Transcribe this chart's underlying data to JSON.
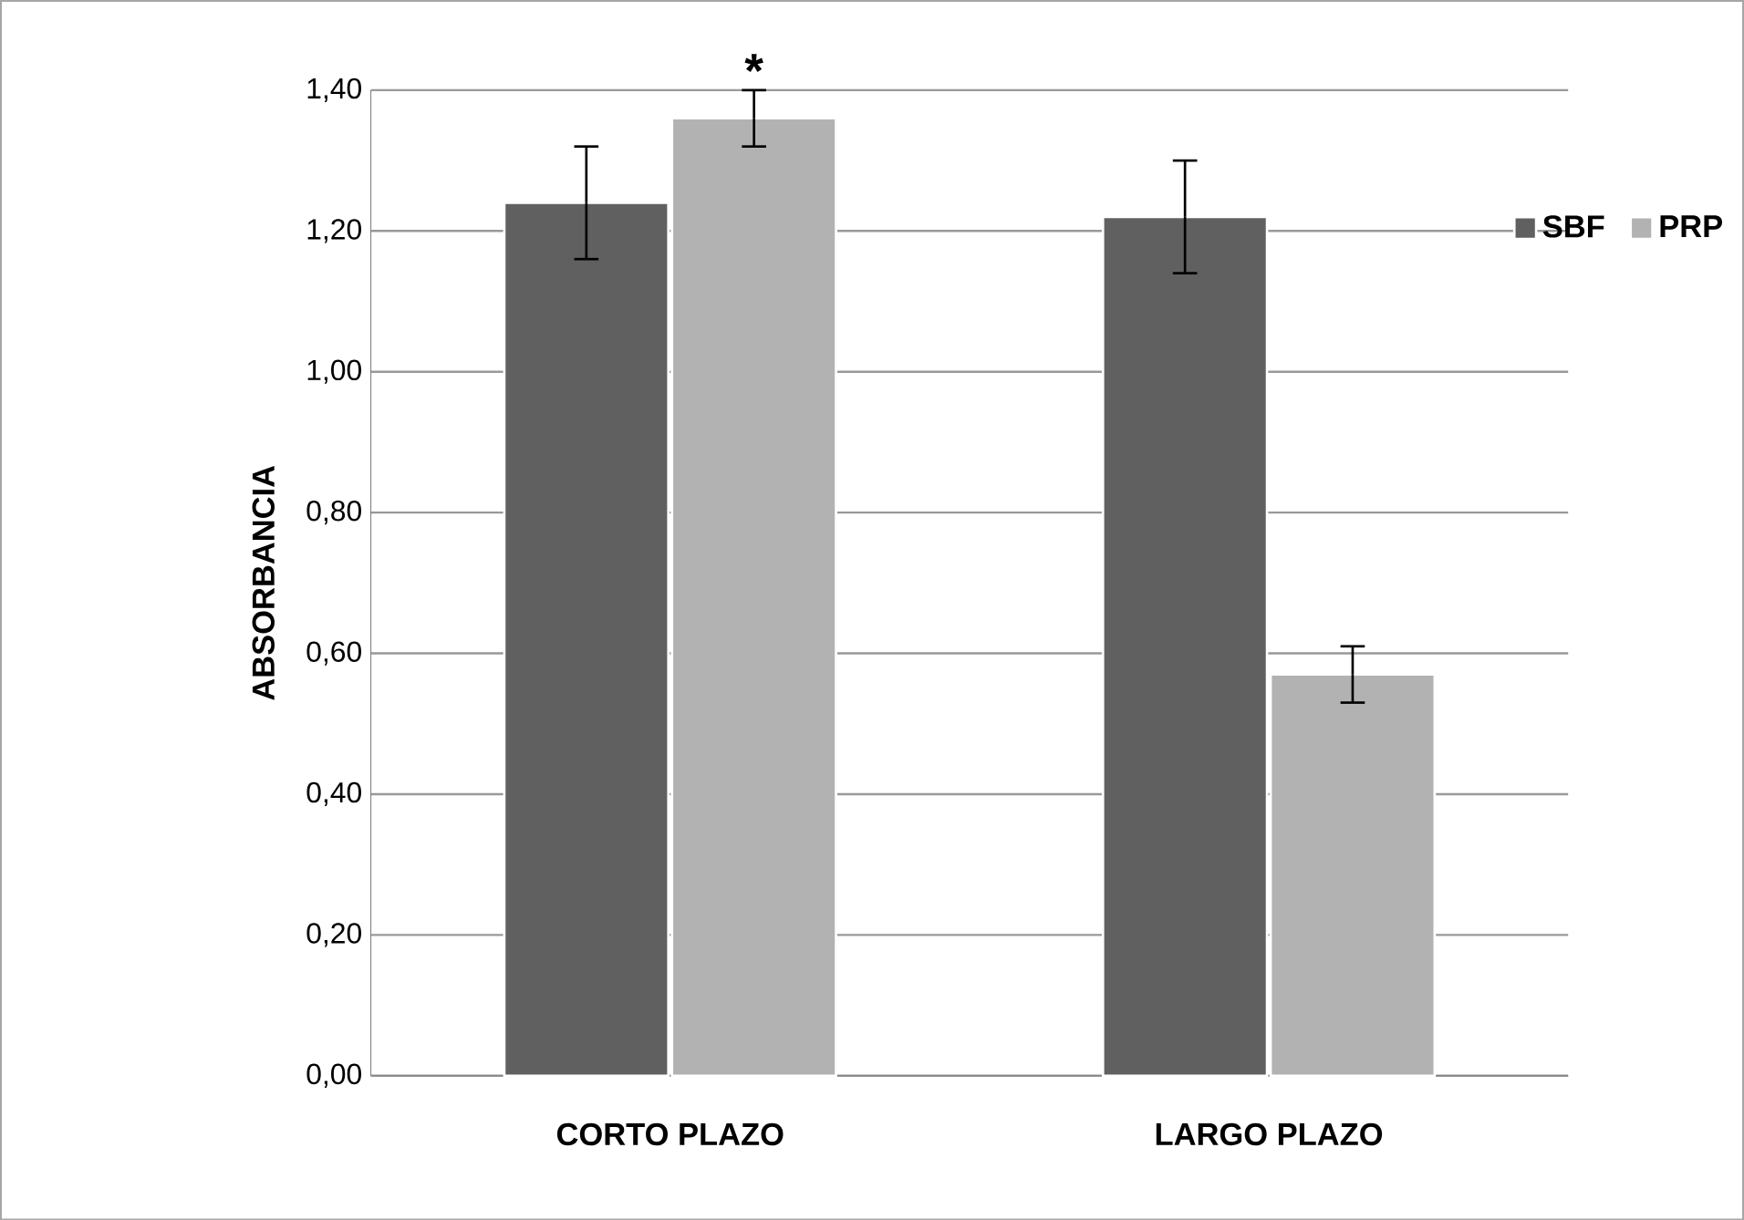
{
  "chart_data": {
    "type": "bar",
    "ylabel": "ABSORBANCIA",
    "categories": [
      "CORTO PLAZO",
      "LARGO PLAZO"
    ],
    "series": [
      {
        "name": "SBF",
        "color": "#606060",
        "values": [
          1.24,
          1.22
        ],
        "errors": [
          0.08,
          0.08
        ]
      },
      {
        "name": "PRP",
        "color": "#b2b2b2",
        "values": [
          1.36,
          0.57
        ],
        "errors": [
          0.04,
          0.04
        ]
      }
    ],
    "ylim": [
      0,
      1.4
    ],
    "yticks": [
      {
        "value": 0,
        "label": "0,00"
      },
      {
        "value": 0.2,
        "label": "0,20"
      },
      {
        "value": 0.4,
        "label": "0,40"
      },
      {
        "value": 0.6,
        "label": "0,60"
      },
      {
        "value": 0.8,
        "label": "0,80"
      },
      {
        "value": 1.0,
        "label": "1,00"
      },
      {
        "value": 1.2,
        "label": "1,20"
      },
      {
        "value": 1.4,
        "label": "1,40"
      }
    ],
    "grid": "y",
    "legend": "top right",
    "annotations": [
      "*"
    ]
  }
}
